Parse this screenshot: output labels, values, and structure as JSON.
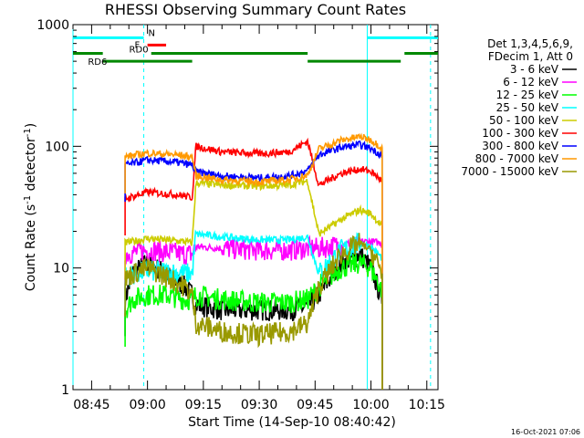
{
  "chart_data": {
    "type": "line",
    "title": "RHESSI Observing Summary Count Rates",
    "xlabel": "Start Time (14-Sep-10 08:40:42)",
    "ylabel_main": "Count Rate (s",
    "ylabel_sup1": "-1",
    "ylabel_mid": " detector",
    "ylabel_sup2": "-1",
    "ylabel_end": ")",
    "y_scale": "log",
    "ylim": [
      1,
      1000
    ],
    "xlim": [
      "08:40",
      "10:18"
    ],
    "x_ticks": [
      "08:45",
      "09:00",
      "09:15",
      "09:30",
      "09:45",
      "10:00",
      "10:15"
    ],
    "y_ticks": [
      {
        "value": 1,
        "label": "1"
      },
      {
        "value": 10,
        "label": "10"
      },
      {
        "value": 100,
        "label": "100"
      },
      {
        "value": 1000,
        "label": "1000"
      }
    ],
    "legend_header": [
      "Det 1,3,4,5,6,9,",
      "FDecim 1, Att 0"
    ],
    "legend_position": "right",
    "series": [
      {
        "name": "3 - 6 keV",
        "color": "#000000",
        "points": [
          [
            "08:54",
            5.5
          ],
          [
            "08:56",
            9
          ],
          [
            "09:00",
            11
          ],
          [
            "09:05",
            9
          ],
          [
            "09:10",
            7
          ],
          [
            "09:12",
            6
          ],
          [
            "09:13",
            5
          ],
          [
            "09:20",
            4.5
          ],
          [
            "09:30",
            4.5
          ],
          [
            "09:38",
            4.5
          ],
          [
            "09:43",
            4.8
          ],
          [
            "09:46",
            6
          ],
          [
            "09:52",
            11
          ],
          [
            "09:57",
            13
          ],
          [
            "10:00",
            10
          ],
          [
            "10:03",
            5.5
          ]
        ]
      },
      {
        "name": "6 - 12 keV",
        "color": "#ff00ff",
        "points": [
          [
            "08:54",
            13
          ],
          [
            "09:00",
            14
          ],
          [
            "09:10",
            13
          ],
          [
            "09:12",
            13
          ],
          [
            "09:13",
            15
          ],
          [
            "09:20",
            14.5
          ],
          [
            "09:30",
            14
          ],
          [
            "09:38",
            14
          ],
          [
            "09:43",
            14.5
          ],
          [
            "09:46",
            14.5
          ],
          [
            "09:52",
            15.5
          ],
          [
            "09:57",
            16.5
          ],
          [
            "10:00",
            16.5
          ],
          [
            "10:03",
            16
          ]
        ]
      },
      {
        "name": "12 - 25 keV",
        "color": "#00ff00",
        "points": [
          [
            "08:54",
            4.5
          ],
          [
            "08:56",
            5.5
          ],
          [
            "09:00",
            6
          ],
          [
            "09:05",
            6
          ],
          [
            "09:10",
            5.5
          ],
          [
            "09:12",
            5.5
          ],
          [
            "09:13",
            6
          ],
          [
            "09:20",
            5.5
          ],
          [
            "09:30",
            5.2
          ],
          [
            "09:38",
            5.2
          ],
          [
            "09:43",
            5.5
          ],
          [
            "09:46",
            7
          ],
          [
            "09:52",
            10
          ],
          [
            "09:57",
            11
          ],
          [
            "10:00",
            10
          ],
          [
            "10:03",
            6.5
          ]
        ]
      },
      {
        "name": "25 - 50 keV",
        "color": "#00ffff",
        "points": [
          [
            "08:54",
            8.5
          ],
          [
            "09:00",
            9.5
          ],
          [
            "09:10",
            9
          ],
          [
            "09:12",
            9
          ],
          [
            "09:13",
            19
          ],
          [
            "09:20",
            18
          ],
          [
            "09:30",
            17
          ],
          [
            "09:38",
            17
          ],
          [
            "09:43",
            18
          ],
          [
            "09:46",
            9
          ],
          [
            "09:52",
            14
          ],
          [
            "09:57",
            16
          ],
          [
            "10:00",
            15
          ],
          [
            "10:03",
            12
          ]
        ]
      },
      {
        "name": "50 - 100 keV",
        "color": "#cccc00",
        "points": [
          [
            "08:54",
            16
          ],
          [
            "09:00",
            17.5
          ],
          [
            "09:10",
            16.5
          ],
          [
            "09:12",
            16
          ],
          [
            "09:13",
            50
          ],
          [
            "09:20",
            48
          ],
          [
            "09:30",
            47
          ],
          [
            "09:38",
            48
          ],
          [
            "09:43",
            52
          ],
          [
            "09:46",
            19
          ],
          [
            "09:52",
            25
          ],
          [
            "09:57",
            30
          ],
          [
            "10:00",
            28
          ],
          [
            "10:03",
            22
          ]
        ]
      },
      {
        "name": "100 - 300 keV",
        "color": "#ff0000",
        "points": [
          [
            "08:54",
            37
          ],
          [
            "09:00",
            42
          ],
          [
            "09:08",
            40
          ],
          [
            "09:12",
            38
          ],
          [
            "09:13",
            100
          ],
          [
            "09:20",
            90
          ],
          [
            "09:30",
            87
          ],
          [
            "09:38",
            90
          ],
          [
            "09:43",
            110
          ],
          [
            "09:46",
            48
          ],
          [
            "09:52",
            60
          ],
          [
            "09:57",
            65
          ],
          [
            "10:00",
            62
          ],
          [
            "10:03",
            52
          ]
        ]
      },
      {
        "name": "300 - 800 keV",
        "color": "#0000ff",
        "points": [
          [
            "08:54",
            70
          ],
          [
            "09:00",
            77
          ],
          [
            "09:08",
            74
          ],
          [
            "09:12",
            70
          ],
          [
            "09:13",
            62
          ],
          [
            "09:20",
            57
          ],
          [
            "09:30",
            55
          ],
          [
            "09:38",
            57
          ],
          [
            "09:43",
            63
          ],
          [
            "09:46",
            85
          ],
          [
            "09:52",
            98
          ],
          [
            "09:57",
            103
          ],
          [
            "10:00",
            96
          ],
          [
            "10:03",
            84
          ]
        ]
      },
      {
        "name": "800 - 7000 keV",
        "color": "#ff9900",
        "points": [
          [
            "08:54",
            82
          ],
          [
            "09:00",
            88
          ],
          [
            "09:08",
            85
          ],
          [
            "09:12",
            82
          ],
          [
            "09:13",
            57
          ],
          [
            "09:20",
            53
          ],
          [
            "09:30",
            51
          ],
          [
            "09:38",
            53
          ],
          [
            "09:43",
            58
          ],
          [
            "09:46",
            95
          ],
          [
            "09:52",
            112
          ],
          [
            "09:57",
            120
          ],
          [
            "10:00",
            113
          ],
          [
            "10:03",
            97
          ]
        ]
      },
      {
        "name": "7000 - 15000 keV",
        "color": "#999900",
        "points": [
          [
            "08:54",
            8
          ],
          [
            "08:56",
            9
          ],
          [
            "09:00",
            10
          ],
          [
            "09:05",
            8.5
          ],
          [
            "09:10",
            7
          ],
          [
            "09:12",
            6
          ],
          [
            "09:13",
            3.5
          ],
          [
            "09:20",
            3
          ],
          [
            "09:30",
            2.8
          ],
          [
            "09:38",
            3
          ],
          [
            "09:43",
            3.5
          ],
          [
            "09:46",
            7
          ],
          [
            "09:52",
            13
          ],
          [
            "09:57",
            16
          ],
          [
            "10:00",
            14
          ],
          [
            "10:03",
            9
          ]
        ]
      }
    ],
    "data_window": {
      "start": "08:54",
      "gap_start": "10:03",
      "end": "10:03"
    },
    "vertical_lines": [
      {
        "time": "08:40",
        "style": "solid",
        "color": "#00ffff"
      },
      {
        "time": "08:59",
        "style": "dashed",
        "color": "#00ffff"
      },
      {
        "time": "09:59",
        "style": "solid",
        "color": "#00ffff"
      },
      {
        "time": "10:16",
        "style": "dashed",
        "color": "#00ffff"
      }
    ],
    "flag_bars": [
      {
        "label": "N",
        "color": "#00ffff",
        "segments": [
          [
            "08:40",
            "08:59"
          ],
          [
            "09:59",
            "10:18"
          ]
        ],
        "value": 780
      },
      {
        "label": "F",
        "color": "#ff0000",
        "segments": [
          [
            "09:00",
            "09:05"
          ]
        ],
        "value": 680
      },
      {
        "label": "RD0",
        "color": "#008800",
        "segments": [
          [
            "08:40",
            "08:48"
          ],
          [
            "09:01",
            "09:43"
          ],
          [
            "10:09",
            "10:18"
          ]
        ],
        "value": 580
      },
      {
        "label": "RD6",
        "color": "#008800",
        "segments": [
          [
            "08:48",
            "09:12"
          ],
          [
            "09:43",
            "10:08"
          ]
        ],
        "value": 500
      }
    ],
    "timestamp": "16-Oct-2021 07:06"
  }
}
